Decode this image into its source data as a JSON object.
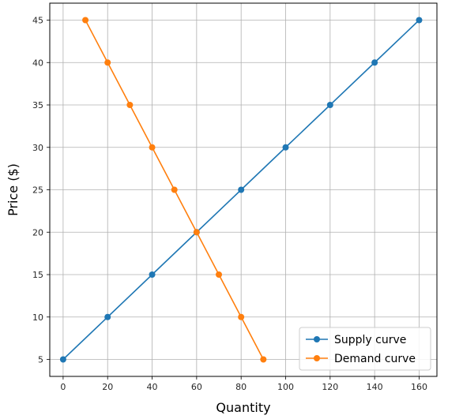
{
  "chart_data": {
    "type": "line",
    "xlabel": "Quantity",
    "ylabel": "Price ($)",
    "xlim": [
      -6,
      168
    ],
    "ylim": [
      3,
      47
    ],
    "xticks": [
      0,
      20,
      40,
      60,
      80,
      100,
      120,
      140,
      160
    ],
    "yticks": [
      5,
      10,
      15,
      20,
      25,
      30,
      35,
      40,
      45
    ],
    "grid": true,
    "legend_position": "lower-right",
    "series": [
      {
        "name": "Supply curve",
        "color": "#1f77b4",
        "x": [
          0,
          20,
          40,
          60,
          80,
          100,
          120,
          140,
          160
        ],
        "y": [
          5,
          10,
          15,
          20,
          25,
          30,
          35,
          40,
          45
        ]
      },
      {
        "name": "Demand curve",
        "color": "#ff7f0e",
        "x": [
          10,
          20,
          30,
          40,
          50,
          60,
          70,
          80,
          90
        ],
        "y": [
          45,
          40,
          35,
          30,
          25,
          20,
          15,
          10,
          5
        ]
      }
    ]
  }
}
